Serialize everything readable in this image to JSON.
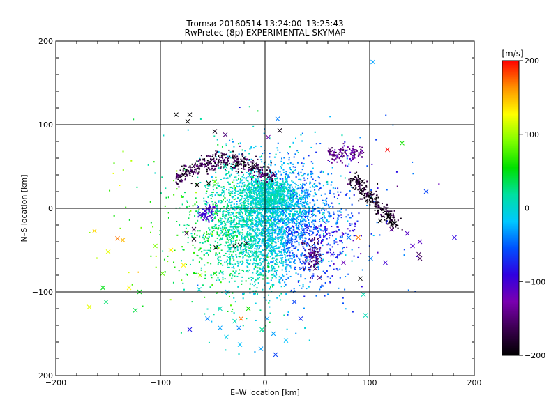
{
  "chart_data": [
    {
      "type": "scatter",
      "title": "Tromsø 20160514 13:24:00–13:25:43",
      "subtitle": "RwPretec (8p) EXPERIMENTAL SKYMAP",
      "xlabel": "E–W location [km]",
      "ylabel": "N–S location [km]",
      "xlim": [
        -200,
        200
      ],
      "ylim": [
        -200,
        200
      ],
      "xticks": [
        -200,
        -100,
        0,
        100,
        200
      ],
      "yticks": [
        -200,
        -100,
        0,
        100,
        200
      ],
      "xtick_labels": [
        "−200",
        "−100",
        "0",
        "100",
        "200"
      ],
      "ytick_labels": [
        "−200",
        "−100",
        "0",
        "100",
        "200"
      ],
      "grid_lines": {
        "x": [
          -100,
          0,
          100
        ],
        "y": [
          -100,
          0,
          100
        ]
      },
      "marker_types": [
        "dot",
        "cross"
      ],
      "note": "Thousands of points colored by line-of-sight velocity [m/s]; dense central cloud around (0,0) of ~green/cyan velocities, arcs of dark purple/black points to the north and east.",
      "series": [
        {
          "marker": "cross",
          "points": [
            [
              -85,
              112,
              -200
            ],
            [
              -74,
              104,
              -200
            ],
            [
              -72,
              112,
              -200
            ],
            [
              -48,
              92,
              -190
            ],
            [
              -38,
              88,
              -150
            ],
            [
              14,
              93,
              -190
            ],
            [
              3,
              85,
              -130
            ],
            [
              12,
              107,
              -40
            ],
            [
              103,
              175,
              -30
            ],
            [
              117,
              70,
              200
            ],
            [
              131,
              78,
              60
            ],
            [
              154,
              20,
              -60
            ],
            [
              181,
              -35,
              -90
            ],
            [
              -78,
              40,
              -200
            ],
            [
              -65,
              28,
              -200
            ],
            [
              -54,
              30,
              -200
            ],
            [
              -48,
              32,
              80
            ],
            [
              -38,
              50,
              10
            ],
            [
              -20,
              60,
              -180
            ],
            [
              -10,
              52,
              -190
            ],
            [
              62,
              70,
              -150
            ],
            [
              72,
              68,
              -130
            ],
            [
              83,
              68,
              -120
            ],
            [
              93,
              32,
              -190
            ],
            [
              110,
              -15,
              -200
            ],
            [
              118,
              -10,
              -200
            ],
            [
              124,
              -18,
              -200
            ],
            [
              121,
              -25,
              -150
            ],
            [
              136,
              -30,
              -110
            ],
            [
              141,
              -45,
              -110
            ],
            [
              148,
              -40,
              -110
            ],
            [
              147,
              -55,
              -160
            ],
            [
              148,
              -60,
              -160
            ],
            [
              115,
              -65,
              -100
            ],
            [
              101,
              -60,
              -40
            ],
            [
              89,
              -35,
              170
            ],
            [
              80,
              -35,
              -40
            ],
            [
              91,
              -84,
              -200
            ],
            [
              64,
              -55,
              -90
            ],
            [
              75,
              -65,
              -120
            ],
            [
              94,
              -103,
              10
            ],
            [
              96,
              -128,
              10
            ],
            [
              -24,
              -44,
              -200
            ],
            [
              -30,
              -45,
              -200
            ],
            [
              -18,
              -42,
              -190
            ],
            [
              -47,
              -47,
              -200
            ],
            [
              -55,
              0,
              -110
            ],
            [
              -58,
              -12,
              -110
            ],
            [
              -62,
              -8,
              -110
            ],
            [
              -68,
              -25,
              -170
            ],
            [
              -75,
              -30,
              -170
            ],
            [
              -68,
              -37,
              -190
            ],
            [
              46,
              -58,
              -150
            ],
            [
              50,
              -65,
              -160
            ],
            [
              48,
              -72,
              -160
            ],
            [
              52,
              -83,
              -150
            ],
            [
              -130,
              -95,
              130
            ],
            [
              -155,
              -95,
              50
            ],
            [
              -152,
              -112,
              30
            ],
            [
              -120,
              -100,
              50
            ],
            [
              -124,
              -122,
              40
            ],
            [
              -168,
              -118,
              120
            ],
            [
              -141,
              -36,
              170
            ],
            [
              -136,
              -38,
              150
            ],
            [
              -150,
              -52,
              120
            ],
            [
              -163,
              -27,
              140
            ],
            [
              -98,
              -78,
              80
            ],
            [
              -72,
              -145,
              -80
            ],
            [
              -55,
              -132,
              -40
            ],
            [
              -43,
              -143,
              -30
            ],
            [
              -37,
              -154,
              -10
            ],
            [
              -24,
              -163,
              -20
            ],
            [
              -25,
              -143,
              -40
            ],
            [
              -29,
              -135,
              10
            ],
            [
              -4,
              -168,
              -30
            ],
            [
              2,
              -132,
              -30
            ],
            [
              8,
              -150,
              -30
            ],
            [
              20,
              -158,
              -20
            ],
            [
              -63,
              -97,
              0
            ],
            [
              -43,
              -120,
              10
            ],
            [
              -23,
              -132,
              170
            ],
            [
              -16,
              -120,
              60
            ],
            [
              -3,
              -145,
              20
            ],
            [
              10,
              -175,
              -60
            ],
            [
              -78,
              -68,
              130
            ],
            [
              -62,
              -80,
              100
            ],
            [
              -48,
              -78,
              60
            ],
            [
              -36,
              -100,
              -20
            ],
            [
              28,
              -112,
              -60
            ],
            [
              34,
              -132,
              -70
            ],
            [
              -105,
              -45,
              90
            ],
            [
              -90,
              -50,
              130
            ]
          ]
        },
        {
          "marker": "dot",
          "points": "Dense cloud of several thousand small points centered near (0,0): velocities near 0 (green) at the core, cyan/teal (-30 to -60 m/s) to the south-east, yellow/orange (+60 to +120 m/s) to the west; dark purple/black arcs at y≈40–60 km spanning x≈−80 to +10 km and at x≈100–140 km, y≈−20 to 40 km."
        }
      ]
    },
    {
      "type": "heatmap",
      "role": "colorbar",
      "label": "[m/s]",
      "range": [
        -200,
        200
      ],
      "ticks": [
        200,
        100,
        0,
        -100,
        -200
      ],
      "tick_labels": [
        "200",
        "100",
        "0",
        "−100",
        "−200"
      ],
      "colormap": [
        "#000000",
        "#3b0050",
        "#7a00b0",
        "#3000e0",
        "#0050ff",
        "#00c8ff",
        "#00e0a0",
        "#00e000",
        "#80ff00",
        "#ffff00",
        "#ff9000",
        "#ff0000"
      ]
    }
  ]
}
